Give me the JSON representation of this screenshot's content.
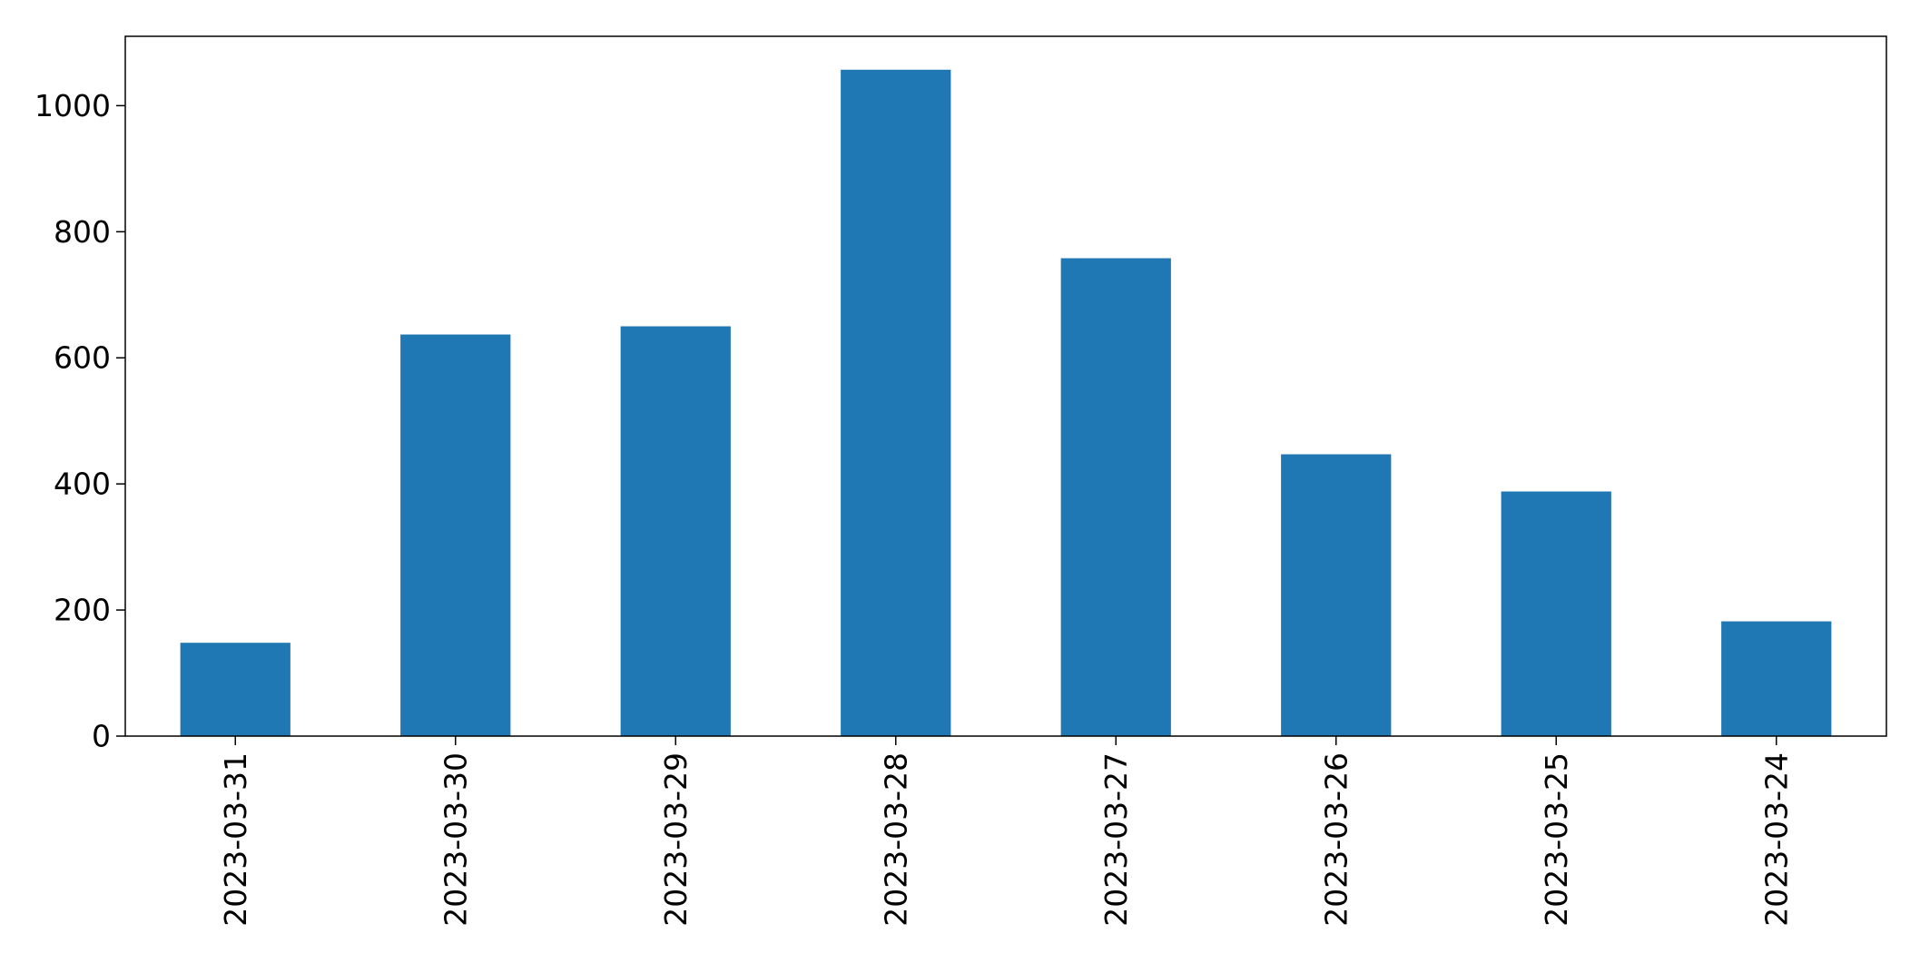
{
  "chart_data": {
    "type": "bar",
    "title": "",
    "xlabel": "",
    "ylabel": "",
    "categories": [
      "2023-03-31",
      "2023-03-30",
      "2023-03-29",
      "2023-03-28",
      "2023-03-27",
      "2023-03-26",
      "2023-03-25",
      "2023-03-24"
    ],
    "series": [
      {
        "values": [
          148,
          637,
          650,
          1057,
          758,
          447,
          388,
          182
        ]
      }
    ],
    "ylim": [
      0,
      1110
    ],
    "yticks": [
      0,
      200,
      400,
      600,
      800,
      1000
    ],
    "grid": false,
    "legend": "none",
    "bar_color": "#1f77b4"
  }
}
